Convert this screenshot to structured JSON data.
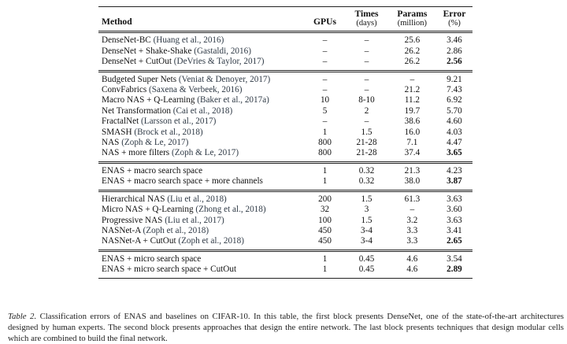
{
  "table": {
    "headers": {
      "method": "Method",
      "gpus": "GPUs",
      "times": "Times",
      "times_unit": "(days)",
      "params": "Params",
      "params_unit": "(million)",
      "error": "Error",
      "error_unit": "(%)"
    },
    "blocks": [
      [
        {
          "name": "DenseNet-BC",
          "cite": "(Huang et al., 2016)",
          "gpus": "–",
          "times": "–",
          "params": "25.6",
          "error": "3.46",
          "best": false
        },
        {
          "name": "DenseNet + Shake-Shake",
          "cite": "(Gastaldi, 2016)",
          "gpus": "–",
          "times": "–",
          "params": "26.2",
          "error": "2.86",
          "best": false
        },
        {
          "name": "DenseNet + CutOut",
          "cite": "(DeVries & Taylor, 2017)",
          "gpus": "–",
          "times": "–",
          "params": "26.2",
          "error": "2.56",
          "best": true
        }
      ],
      [
        {
          "name": "Budgeted Super Nets",
          "cite": "(Veniat & Denoyer, 2017)",
          "gpus": "–",
          "times": "–",
          "params": "–",
          "error": "9.21",
          "best": false
        },
        {
          "name": "ConvFabrics",
          "cite": "(Saxena & Verbeek, 2016)",
          "gpus": "–",
          "times": "–",
          "params": "21.2",
          "error": "7.43",
          "best": false
        },
        {
          "name": "Macro NAS + Q-Learning",
          "cite": "(Baker et al., 2017a)",
          "gpus": "10",
          "times": "8-10",
          "params": "11.2",
          "error": "6.92",
          "best": false
        },
        {
          "name": "Net Transformation",
          "cite": "(Cai et al., 2018)",
          "gpus": "5",
          "times": "2",
          "params": "19.7",
          "error": "5.70",
          "best": false
        },
        {
          "name": "FractalNet",
          "cite": "(Larsson et al., 2017)",
          "gpus": "–",
          "times": "–",
          "params": "38.6",
          "error": "4.60",
          "best": false
        },
        {
          "name": "SMASH",
          "cite": "(Brock et al., 2018)",
          "gpus": "1",
          "times": "1.5",
          "params": "16.0",
          "error": "4.03",
          "best": false
        },
        {
          "name": "NAS",
          "cite": "(Zoph & Le, 2017)",
          "gpus": "800",
          "times": "21-28",
          "params": "7.1",
          "error": "4.47",
          "best": false
        },
        {
          "name": "NAS + more filters",
          "cite": "(Zoph & Le, 2017)",
          "gpus": "800",
          "times": "21-28",
          "params": "37.4",
          "error": "3.65",
          "best": true
        }
      ],
      [
        {
          "name": "ENAS + macro search space",
          "cite": "",
          "gpus": "1",
          "times": "0.32",
          "params": "21.3",
          "error": "4.23",
          "best": false
        },
        {
          "name": "ENAS + macro search space + more channels",
          "cite": "",
          "gpus": "1",
          "times": "0.32",
          "params": "38.0",
          "error": "3.87",
          "best": true
        }
      ],
      [
        {
          "name": "Hierarchical NAS",
          "cite": "(Liu et al., 2018)",
          "gpus": "200",
          "times": "1.5",
          "params": "61.3",
          "error": "3.63",
          "best": false
        },
        {
          "name": "Micro NAS + Q-Learning",
          "cite": "(Zhong et al., 2018)",
          "gpus": "32",
          "times": "3",
          "params": "–",
          "error": "3.60",
          "best": false
        },
        {
          "name": "Progressive NAS",
          "cite": "(Liu et al., 2017)",
          "gpus": "100",
          "times": "1.5",
          "params": "3.2",
          "error": "3.63",
          "best": false
        },
        {
          "name": "NASNet-A",
          "cite": "(Zoph et al., 2018)",
          "gpus": "450",
          "times": "3-4",
          "params": "3.3",
          "error": "3.41",
          "best": false
        },
        {
          "name": "NASNet-A + CutOut",
          "cite": "(Zoph et al., 2018)",
          "gpus": "450",
          "times": "3-4",
          "params": "3.3",
          "error": "2.65",
          "best": true
        }
      ],
      [
        {
          "name": "ENAS + micro search space",
          "cite": "",
          "gpus": "1",
          "times": "0.45",
          "params": "4.6",
          "error": "3.54",
          "best": false
        },
        {
          "name": "ENAS + micro search space + CutOut",
          "cite": "",
          "gpus": "1",
          "times": "0.45",
          "params": "4.6",
          "error": "2.89",
          "best": true
        }
      ]
    ]
  },
  "caption": {
    "label": "Table 2.",
    "text": "Classification errors of ENAS and baselines on CIFAR-10. In this table, the first block presents DenseNet, one of the state-of-the-art architectures designed by human experts. The second block presents approaches that design the entire network. The last block presents techniques that design modular cells which are combined to build the final network."
  }
}
